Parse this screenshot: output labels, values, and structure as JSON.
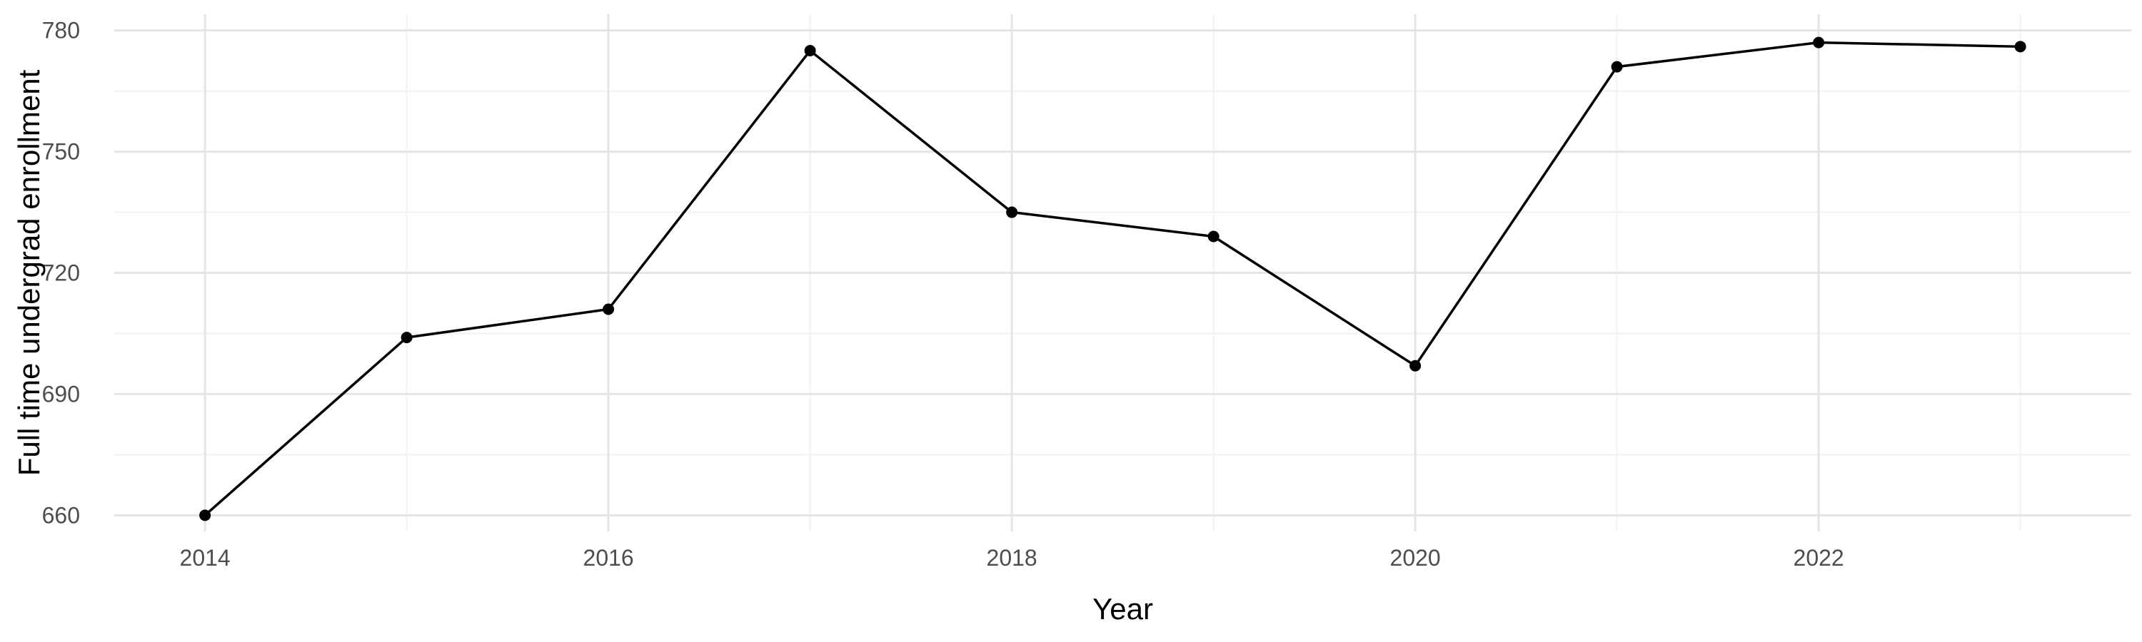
{
  "chart_data": {
    "type": "line",
    "title": "",
    "xlabel": "Year",
    "ylabel": "Full time undergrad enrollment",
    "x": [
      2014,
      2015,
      2016,
      2017,
      2018,
      2019,
      2020,
      2021,
      2022,
      2023
    ],
    "series": [
      {
        "values": [
          660,
          704,
          711,
          775,
          735,
          729,
          697,
          771,
          777,
          776
        ]
      }
    ],
    "xlim": [
      2013.55,
      2023.55
    ],
    "ylim": [
      656,
      784
    ],
    "x_ticks": [
      2014,
      2016,
      2018,
      2020,
      2022
    ],
    "x_tick_labels": [
      "2014",
      "2016",
      "2018",
      "2020",
      "2022"
    ],
    "y_ticks": [
      660,
      690,
      720,
      750,
      780
    ],
    "y_tick_labels": [
      "660",
      "690",
      "720",
      "750",
      "780"
    ],
    "grid": true,
    "legend": "none",
    "colors": {
      "line": "#000000",
      "point": "#000000",
      "grid_major": "#e5e5e5",
      "grid_minor": "#f2f2f2",
      "tick_text": "#4d4d4d",
      "background": "#ffffff"
    }
  }
}
